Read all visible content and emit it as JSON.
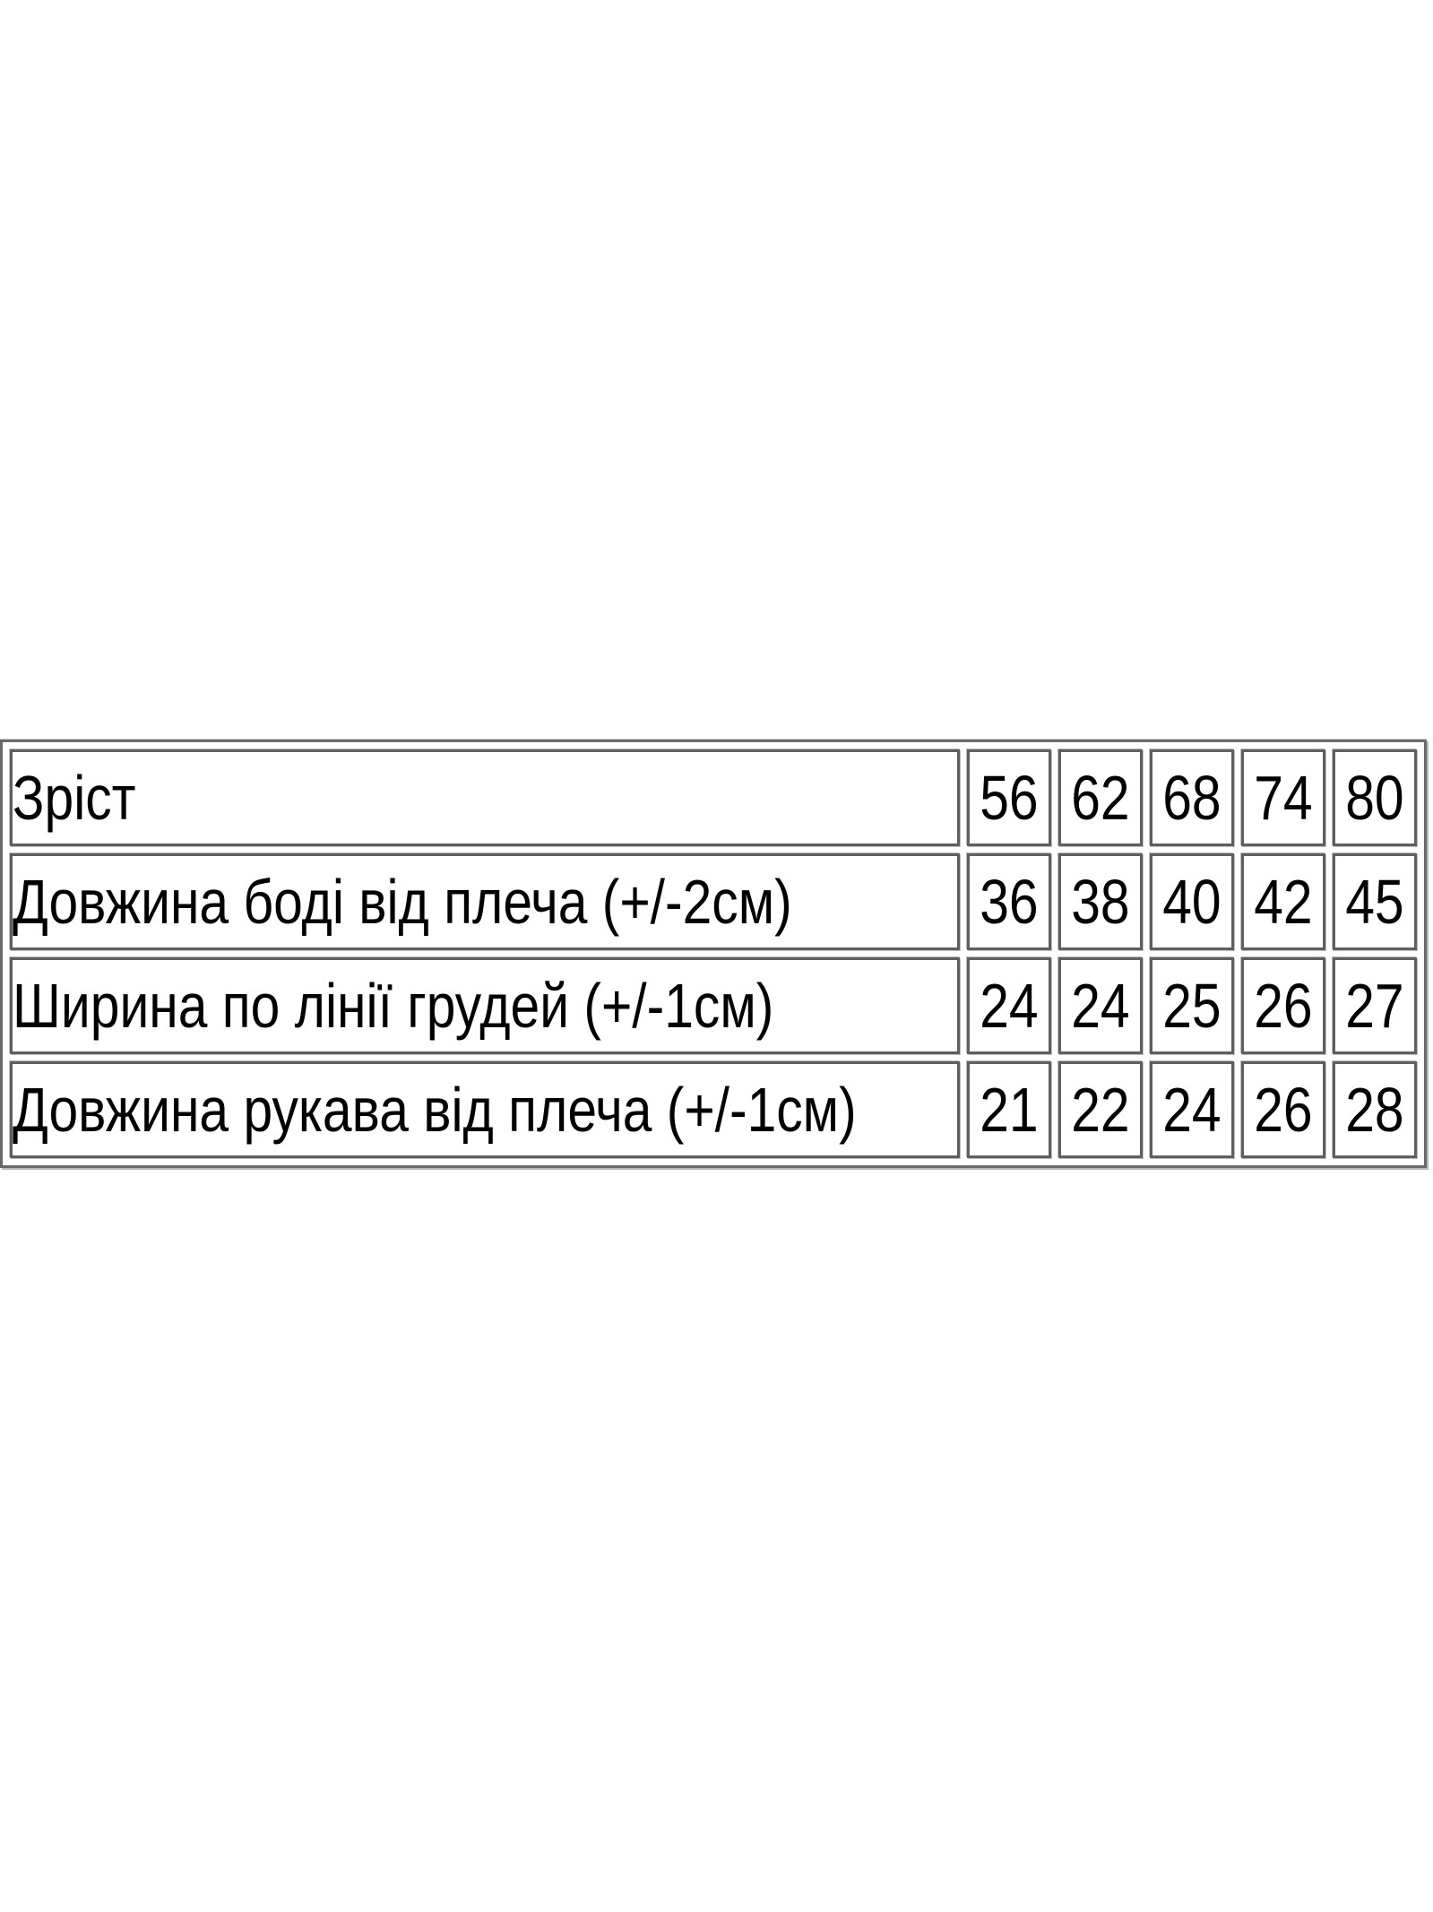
{
  "page": {
    "background_color": "#ffffff",
    "text_color": "#000000",
    "border_color_dark": "#5f5f5f",
    "border_color_light": "#bdbdbd"
  },
  "size_chart": {
    "rows": [
      {
        "label": "Зріст",
        "values": [
          "56",
          "62",
          "68",
          "74",
          "80"
        ]
      },
      {
        "label": "Довжина боді від плеча (+/-2см)",
        "values": [
          "36",
          "38",
          "40",
          "42",
          "45"
        ]
      },
      {
        "label": "Ширина по лінії грудей (+/-1см)",
        "values": [
          "24",
          "24",
          "25",
          "26",
          "27"
        ]
      },
      {
        "label": "Довжина рукава від плеча (+/-1см)",
        "values": [
          "21",
          "22",
          "24",
          "26",
          "28"
        ]
      }
    ]
  },
  "chart_data": {
    "type": "table",
    "categories": [
      56,
      62,
      68,
      74,
      80
    ],
    "series": [
      {
        "name": "Зріст",
        "values": [
          56,
          62,
          68,
          74,
          80
        ]
      },
      {
        "name": "Довжина боді від плеча (+/-2см)",
        "values": [
          36,
          38,
          40,
          42,
          45
        ]
      },
      {
        "name": "Ширина по лінії грудей (+/-1см)",
        "values": [
          24,
          24,
          25,
          26,
          27
        ]
      },
      {
        "name": "Довжина рукава від плеча (+/-1см)",
        "values": [
          21,
          22,
          24,
          26,
          28
        ]
      }
    ],
    "title": "",
    "xlabel": "",
    "ylabel": "",
    "legend_position": "none",
    "grid": true
  }
}
